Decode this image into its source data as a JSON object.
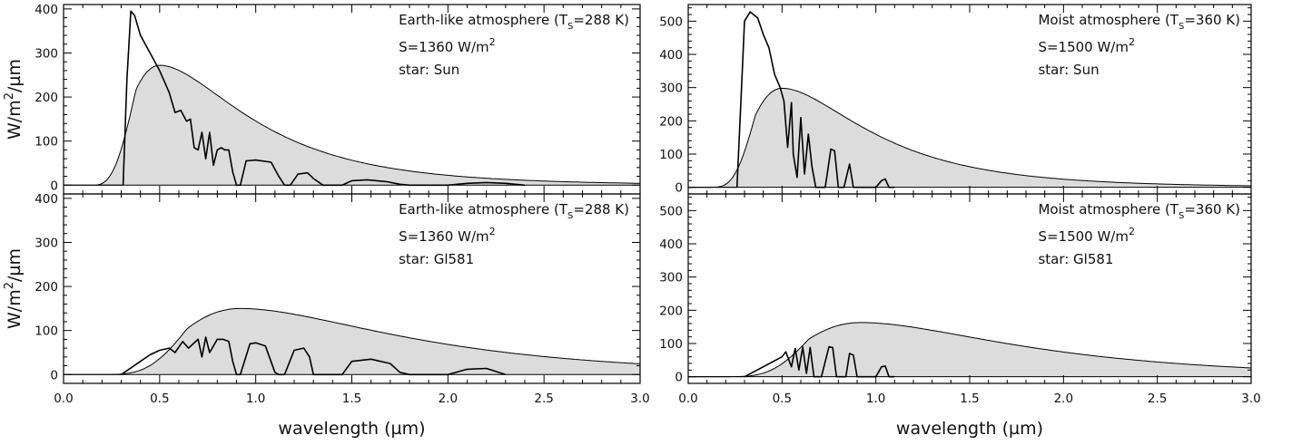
{
  "chart_data": [
    {
      "type": "area",
      "panel": "top-left",
      "annotation": [
        "Earth-like atmosphere (T",
        "S",
        "=288 K)"
      ],
      "flux_label": [
        "S=1360 W/m",
        "2"
      ],
      "star_label": "star: Sun",
      "ylabel": [
        "W/m",
        "2",
        "/",
        "µ",
        "m"
      ],
      "xlabel": "",
      "ylim": [
        -20,
        410
      ],
      "yticks": [
        0,
        100,
        200,
        300,
        400
      ],
      "xlim": [
        0,
        3.0
      ],
      "envelope": {
        "peak_x": 0.5,
        "peak_y": 272,
        "onset": 0.17
      },
      "spectrum": {
        "start": 0.33,
        "end": 2.4,
        "x": [
          0.31,
          0.33,
          0.35,
          0.37,
          0.4,
          0.45,
          0.5,
          0.55,
          0.58,
          0.61,
          0.64,
          0.66,
          0.68,
          0.7,
          0.72,
          0.74,
          0.76,
          0.78,
          0.8,
          0.82,
          0.84,
          0.86,
          0.88,
          0.9,
          0.92,
          0.95,
          1.0,
          1.08,
          1.12,
          1.15,
          1.18,
          1.22,
          1.27,
          1.3,
          1.35,
          1.45,
          1.5,
          1.58,
          1.68,
          1.75,
          1.8,
          2.0,
          2.1,
          2.2,
          2.3,
          2.4
        ],
        "y": [
          0,
          240,
          395,
          385,
          340,
          300,
          260,
          210,
          165,
          170,
          145,
          150,
          85,
          80,
          120,
          60,
          120,
          45,
          80,
          85,
          80,
          80,
          30,
          0,
          0,
          55,
          57,
          52,
          20,
          0,
          0,
          25,
          28,
          15,
          0,
          0,
          10,
          12,
          8,
          2,
          0,
          0,
          4,
          6,
          4,
          0
        ]
      }
    },
    {
      "type": "area",
      "panel": "top-right",
      "annotation": [
        "Moist atmosphere (T",
        "S",
        "=360 K)"
      ],
      "flux_label": [
        "S=1500 W/m",
        "2"
      ],
      "star_label": "star: Sun",
      "ylabel": "",
      "xlabel": "",
      "ylim": [
        -20,
        550
      ],
      "yticks": [
        0,
        100,
        200,
        300,
        400,
        500
      ],
      "xlim": [
        0,
        3.0
      ],
      "envelope": {
        "peak_x": 0.5,
        "peak_y": 298,
        "onset": 0.12
      },
      "spectrum": {
        "start": 0.26,
        "end": 1.1,
        "x": [
          0.26,
          0.28,
          0.3,
          0.33,
          0.37,
          0.4,
          0.43,
          0.46,
          0.49,
          0.51,
          0.53,
          0.55,
          0.56,
          0.58,
          0.6,
          0.62,
          0.64,
          0.66,
          0.68,
          0.7,
          0.73,
          0.76,
          0.78,
          0.8,
          0.83,
          0.86,
          0.88,
          0.9,
          1.0,
          1.03,
          1.05,
          1.07,
          1.1
        ],
        "y": [
          0,
          250,
          500,
          528,
          510,
          460,
          420,
          340,
          300,
          260,
          120,
          255,
          100,
          30,
          210,
          40,
          160,
          60,
          0,
          0,
          0,
          115,
          110,
          0,
          0,
          70,
          0,
          0,
          0,
          20,
          25,
          0,
          0
        ]
      }
    },
    {
      "type": "area",
      "panel": "bottom-left",
      "annotation": [
        "Earth-like atmosphere (T",
        "S",
        "=288 K)"
      ],
      "flux_label": [
        "S=1360 W/m",
        "2"
      ],
      "star_label": "star: Gl581",
      "ylabel": [
        "W/m",
        "2",
        "/",
        "µ",
        "m"
      ],
      "xlabel": [
        "wavelength (",
        "µ",
        "m)"
      ],
      "ylim": [
        -20,
        410
      ],
      "yticks": [
        0,
        100,
        200,
        300,
        400
      ],
      "xlim": [
        0,
        3.0
      ],
      "xticks": [
        "0.0",
        "0.5",
        "1.0",
        "1.5",
        "2.0",
        "2.5",
        "3.0"
      ],
      "envelope": {
        "peak_x": 0.92,
        "peak_y": 150,
        "onset": 0.18
      },
      "spectrum": {
        "start": 0.3,
        "end": 2.3,
        "x": [
          0.3,
          0.4,
          0.45,
          0.5,
          0.55,
          0.58,
          0.62,
          0.65,
          0.7,
          0.72,
          0.74,
          0.76,
          0.8,
          0.83,
          0.86,
          0.88,
          0.9,
          0.92,
          0.97,
          1.0,
          1.05,
          1.1,
          1.12,
          1.15,
          1.2,
          1.25,
          1.28,
          1.3,
          1.35,
          1.45,
          1.5,
          1.6,
          1.7,
          1.75,
          1.8,
          2.0,
          2.1,
          2.2,
          2.3
        ],
        "y": [
          0,
          30,
          45,
          55,
          60,
          50,
          75,
          60,
          80,
          40,
          85,
          50,
          80,
          80,
          75,
          30,
          0,
          0,
          70,
          72,
          65,
          5,
          0,
          0,
          55,
          60,
          40,
          0,
          0,
          0,
          30,
          35,
          25,
          5,
          0,
          0,
          12,
          14,
          0
        ]
      }
    },
    {
      "type": "area",
      "panel": "bottom-right",
      "annotation": [
        "Moist atmosphere (T",
        "S",
        "=360 K)"
      ],
      "flux_label": [
        "S=1500 W/m",
        "2"
      ],
      "star_label": "star: Gl581",
      "ylabel": "",
      "xlabel": [
        "wavelength (",
        "µ",
        "m)"
      ],
      "ylim": [
        -20,
        550
      ],
      "yticks": [
        0,
        100,
        200,
        300,
        400,
        500
      ],
      "xlim": [
        0,
        3.0
      ],
      "xticks": [
        "0.0",
        "0.5",
        "1.0",
        "1.5",
        "2.0",
        "2.5",
        "3.0"
      ],
      "envelope": {
        "peak_x": 0.92,
        "peak_y": 163,
        "onset": 0.18
      },
      "spectrum": {
        "start": 0.3,
        "end": 1.1,
        "x": [
          0.3,
          0.4,
          0.45,
          0.5,
          0.52,
          0.55,
          0.57,
          0.59,
          0.61,
          0.63,
          0.65,
          0.67,
          0.69,
          0.71,
          0.75,
          0.77,
          0.79,
          0.84,
          0.86,
          0.88,
          0.9,
          1.0,
          1.03,
          1.05,
          1.07,
          1.1
        ],
        "y": [
          0,
          30,
          45,
          60,
          75,
          30,
          85,
          20,
          90,
          10,
          88,
          0,
          0,
          0,
          90,
          88,
          0,
          0,
          70,
          65,
          0,
          0,
          30,
          32,
          0,
          0
        ]
      }
    }
  ]
}
